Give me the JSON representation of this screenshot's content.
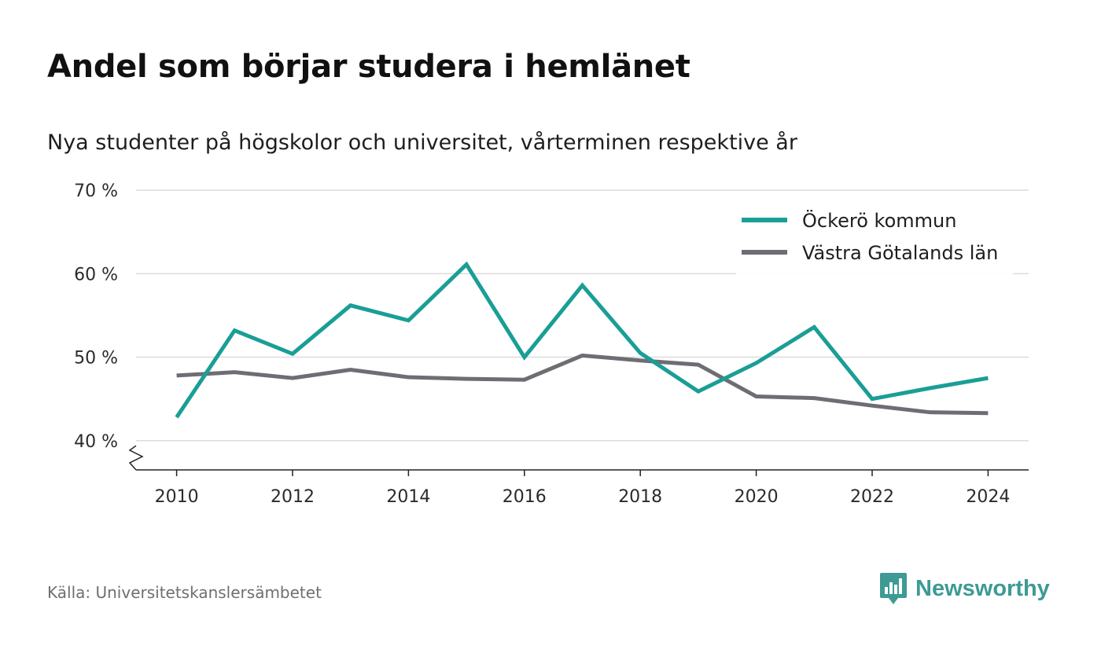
{
  "title": "Andel som börjar studera i hemlänet",
  "subtitle": "Nya studenter på högskolor och universitet, vårterminen respektive år",
  "source": "Källa: Universitetskanslersämbetet",
  "brand": {
    "name": "Newsworthy",
    "icon": "newsworthy-logo-icon",
    "color": "#3d9a94"
  },
  "chart_data": {
    "type": "line",
    "x": [
      2010,
      2011,
      2012,
      2013,
      2014,
      2015,
      2016,
      2017,
      2018,
      2019,
      2020,
      2021,
      2022,
      2023,
      2024
    ],
    "x_ticks": [
      2010,
      2012,
      2014,
      2016,
      2018,
      2020,
      2022,
      2024
    ],
    "x_tick_labels": [
      "2010",
      "2012",
      "2014",
      "2016",
      "2018",
      "2020",
      "2022",
      "2024"
    ],
    "y_ticks": [
      40,
      50,
      60,
      70
    ],
    "y_tick_labels": [
      "40 %",
      "50 %",
      "60 %",
      "70 %"
    ],
    "ylim": [
      36.5,
      70
    ],
    "xlim": [
      2009.3,
      2024.7
    ],
    "y_axis_break": true,
    "grid": true,
    "legend_position": "top-right",
    "series": [
      {
        "name": "Öckerö kommun",
        "color": "#1a9e96",
        "values": [
          42.8,
          53.2,
          50.4,
          56.2,
          54.4,
          61.1,
          50.0,
          58.6,
          50.5,
          45.9,
          49.3,
          53.6,
          45.0,
          46.3,
          47.5
        ]
      },
      {
        "name": "Västra Götalands län",
        "color": "#6e6d74",
        "values": [
          47.8,
          48.2,
          47.5,
          48.5,
          47.6,
          47.4,
          47.3,
          50.2,
          49.6,
          49.1,
          45.3,
          45.1,
          44.2,
          43.4,
          43.3
        ]
      }
    ]
  }
}
